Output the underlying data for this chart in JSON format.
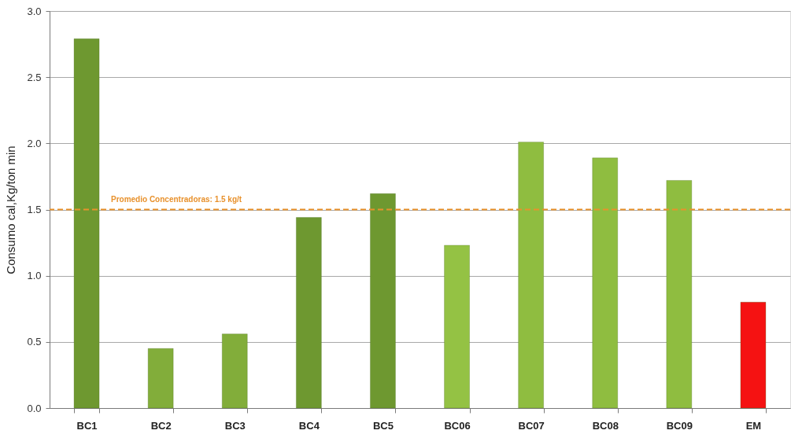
{
  "chart_data": {
    "type": "bar",
    "ylabel": "Consumo cal,Kg/ton min",
    "categories": [
      "BC1",
      "BC2",
      "BC3",
      "BC4",
      "BC5",
      "BC06",
      "BC07",
      "BC08",
      "BC09",
      "EM"
    ],
    "values": [
      2.79,
      0.45,
      0.56,
      1.44,
      1.62,
      1.23,
      2.01,
      1.89,
      1.72,
      0.8
    ],
    "colors": [
      "#6e9830",
      "#82ad3a",
      "#82ad3a",
      "#6e9830",
      "#6e9830",
      "#94c244",
      "#8fbd40",
      "#8fbd40",
      "#8fbd40",
      "#f51212"
    ],
    "ylim": [
      0,
      3
    ],
    "yticks": [
      {
        "value": 0,
        "label": "0.0"
      },
      0.5,
      {
        "value": 1,
        "label": "1.0"
      },
      1.5,
      {
        "value": 2,
        "label": "2.0"
      },
      2.5,
      {
        "value": 3,
        "label": "3.0"
      }
    ],
    "ref_lines": [
      {
        "axis": "y",
        "value": 1.5,
        "label": "Promedio Concentradoras: 1.5 kg/t",
        "color": "#e8912c",
        "line_style": "dashed"
      }
    ],
    "grid": "y"
  }
}
